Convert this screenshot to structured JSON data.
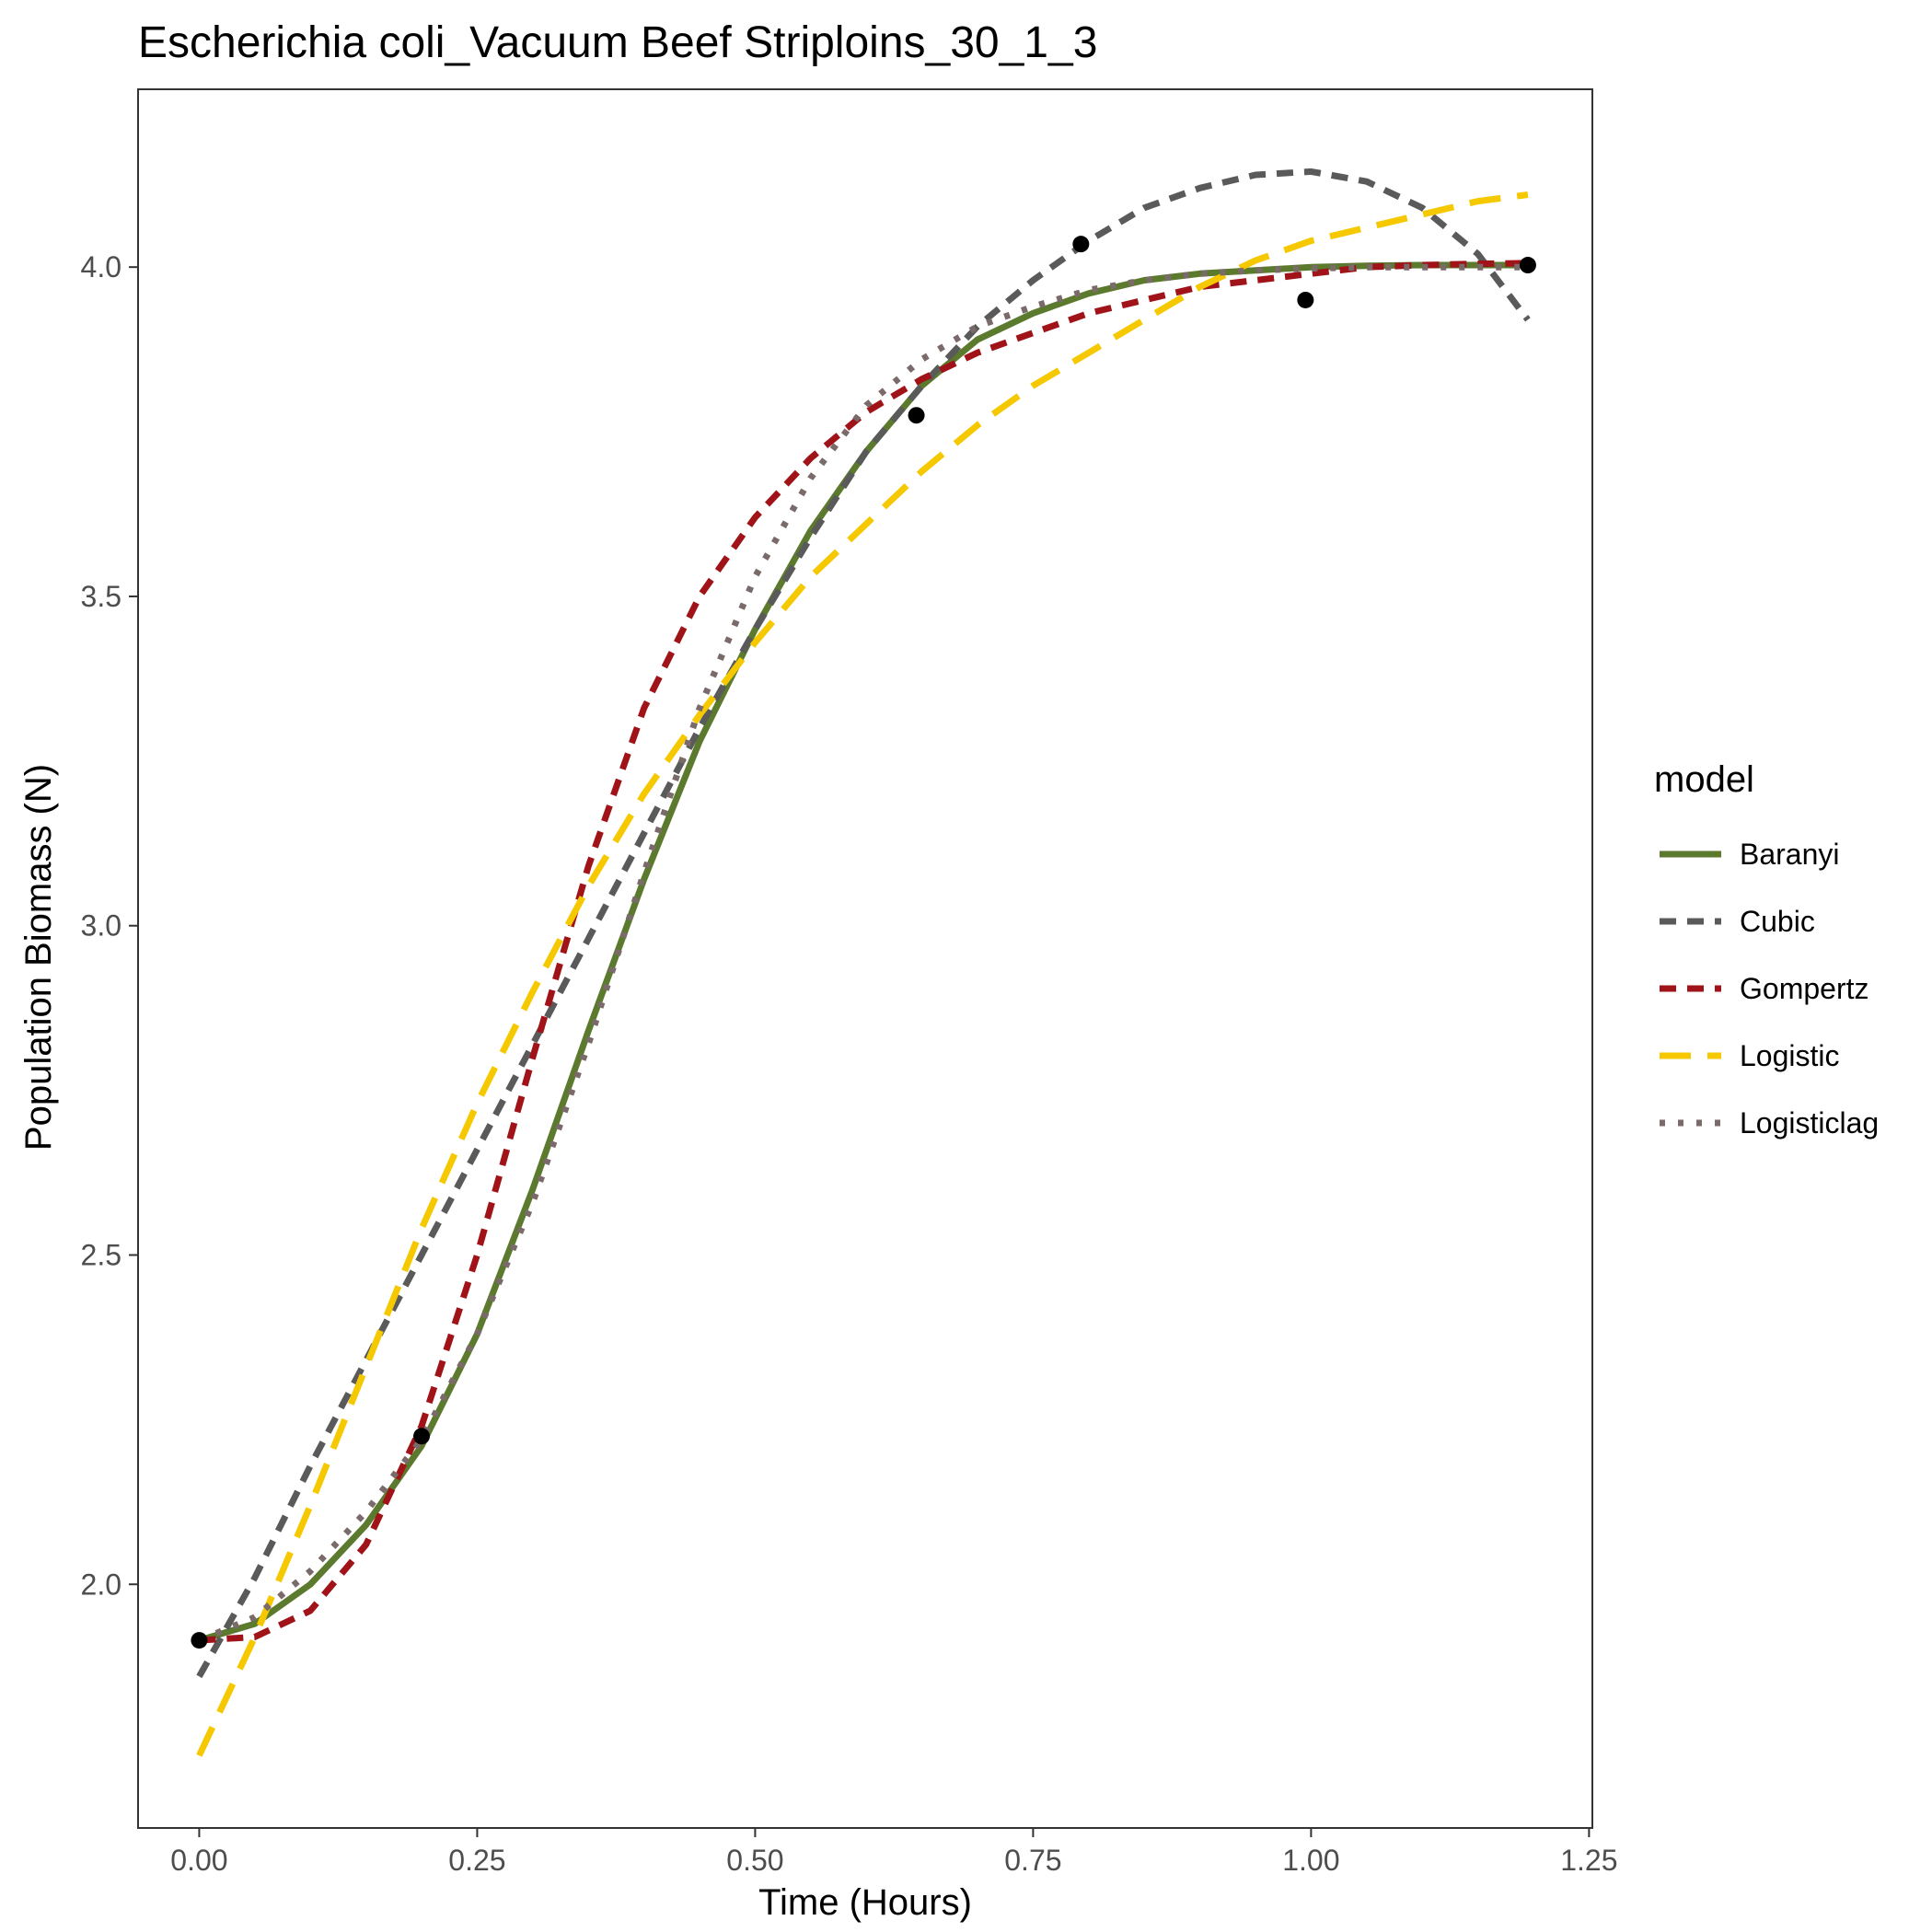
{
  "chart_data": {
    "type": "line",
    "title": "Escherichia coli_Vacuum Beef Striploins_30_1_3",
    "xlabel": "Time (Hours)",
    "ylabel": "Population Biomass (N)",
    "xlim": [
      -0.055,
      1.253
    ],
    "ylim": [
      1.63,
      4.27
    ],
    "x_ticks": [
      0,
      0.25,
      0.5,
      0.75,
      1.0,
      1.25
    ],
    "x_tick_labels": [
      "0.00",
      "0.25",
      "0.50",
      "0.75",
      "1.00",
      "1.25"
    ],
    "y_ticks": [
      2.0,
      2.5,
      3.0,
      3.5,
      4.0
    ],
    "y_tick_labels": [
      "2.0",
      "2.5",
      "3.0",
      "3.5",
      "4.0"
    ],
    "grid": false,
    "legend": {
      "title": "model",
      "position": "right"
    },
    "points": [
      {
        "x": 0.0,
        "y": 1.915
      },
      {
        "x": 0.2,
        "y": 2.225
      },
      {
        "x": 0.645,
        "y": 3.775
      },
      {
        "x": 0.793,
        "y": 4.035
      },
      {
        "x": 0.995,
        "y": 3.95
      },
      {
        "x": 1.195,
        "y": 4.003
      }
    ],
    "series": [
      {
        "name": "Baranyi",
        "color": "#5b7a2e",
        "dash": "solid",
        "x": [
          0.0,
          0.05,
          0.1,
          0.15,
          0.2,
          0.25,
          0.3,
          0.35,
          0.4,
          0.45,
          0.5,
          0.55,
          0.6,
          0.65,
          0.7,
          0.75,
          0.8,
          0.85,
          0.9,
          0.95,
          1.0,
          1.05,
          1.1,
          1.15,
          1.195
        ],
        "y": [
          1.915,
          1.94,
          2.0,
          2.09,
          2.21,
          2.38,
          2.6,
          2.84,
          3.07,
          3.28,
          3.45,
          3.6,
          3.72,
          3.82,
          3.89,
          3.93,
          3.96,
          3.98,
          3.99,
          3.995,
          4.0,
          4.002,
          4.003,
          4.003,
          4.003
        ]
      },
      {
        "name": "Cubic",
        "color": "#5a5a5a",
        "dash": "dashed",
        "x": [
          0.0,
          0.05,
          0.1,
          0.15,
          0.2,
          0.25,
          0.3,
          0.35,
          0.4,
          0.45,
          0.5,
          0.55,
          0.6,
          0.65,
          0.7,
          0.75,
          0.8,
          0.85,
          0.9,
          0.95,
          1.0,
          1.05,
          1.1,
          1.15,
          1.195
        ],
        "y": [
          1.86,
          2.01,
          2.18,
          2.34,
          2.5,
          2.66,
          2.82,
          2.98,
          3.14,
          3.3,
          3.45,
          3.59,
          3.72,
          3.82,
          3.91,
          3.98,
          4.04,
          4.09,
          4.12,
          4.14,
          4.145,
          4.13,
          4.09,
          4.02,
          3.92
        ]
      },
      {
        "name": "Gompertz",
        "color": "#a01419",
        "dash": "dashed",
        "x": [
          0.0,
          0.05,
          0.1,
          0.15,
          0.2,
          0.25,
          0.3,
          0.35,
          0.4,
          0.45,
          0.5,
          0.55,
          0.6,
          0.65,
          0.7,
          0.75,
          0.8,
          0.85,
          0.9,
          0.95,
          1.0,
          1.05,
          1.1,
          1.15,
          1.195
        ],
        "y": [
          1.915,
          1.92,
          1.96,
          2.06,
          2.24,
          2.5,
          2.8,
          3.09,
          3.33,
          3.5,
          3.62,
          3.71,
          3.78,
          3.83,
          3.87,
          3.9,
          3.93,
          3.95,
          3.97,
          3.98,
          3.99,
          4.0,
          4.003,
          4.005,
          4.006
        ]
      },
      {
        "name": "Logistic",
        "color": "#f5c800",
        "dash": "longdash",
        "x": [
          0.0,
          0.05,
          0.1,
          0.15,
          0.2,
          0.25,
          0.3,
          0.35,
          0.4,
          0.45,
          0.5,
          0.55,
          0.6,
          0.65,
          0.7,
          0.75,
          0.8,
          0.85,
          0.9,
          0.95,
          1.0,
          1.05,
          1.1,
          1.15,
          1.195
        ],
        "y": [
          1.74,
          1.92,
          2.12,
          2.33,
          2.54,
          2.73,
          2.9,
          3.06,
          3.2,
          3.32,
          3.43,
          3.53,
          3.61,
          3.69,
          3.76,
          3.82,
          3.87,
          3.92,
          3.97,
          4.01,
          4.04,
          4.06,
          4.08,
          4.1,
          4.11
        ]
      },
      {
        "name": "Logisticlag",
        "color": "#7a6a6a",
        "dash": "dotted",
        "x": [
          0.0,
          0.05,
          0.1,
          0.15,
          0.2,
          0.25,
          0.3,
          0.35,
          0.4,
          0.45,
          0.5,
          0.55,
          0.6,
          0.65,
          0.7,
          0.75,
          0.8,
          0.85,
          0.9,
          0.95,
          1.0,
          1.05,
          1.1,
          1.15,
          1.195
        ],
        "y": [
          1.915,
          1.95,
          2.02,
          2.11,
          2.22,
          2.38,
          2.58,
          2.82,
          3.08,
          3.33,
          3.53,
          3.68,
          3.79,
          3.86,
          3.91,
          3.94,
          3.965,
          3.98,
          3.99,
          3.995,
          3.998,
          4.0,
          4.0,
          4.0,
          4.0
        ]
      }
    ]
  }
}
